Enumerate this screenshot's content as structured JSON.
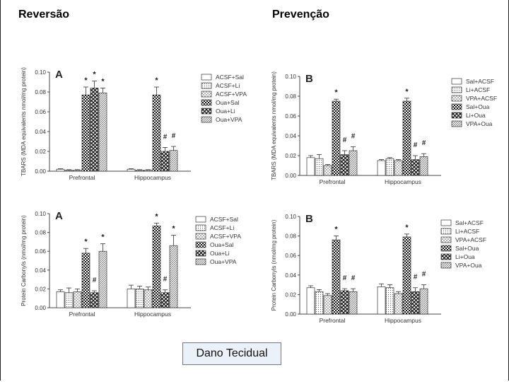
{
  "headings": {
    "left": "Reversão",
    "right": "Prevenção"
  },
  "caption": "Dano Tecidual",
  "colors": {
    "axis": "#444444",
    "bar_fill": "#ffffff",
    "bar_stroke": "#333333",
    "text": "#333333"
  },
  "chart_data": [
    {
      "type": "bar",
      "panel_letter": "A",
      "ylabel": "TBARS (MDA equivalents nmol/mg protein)",
      "ylim": [
        0,
        0.1
      ],
      "yticks": [
        "0.00",
        "0.02",
        "0.04",
        "0.06",
        "0.08",
        "0.10"
      ],
      "categories": [
        "Prefrontal",
        "Hippocampus"
      ],
      "series": [
        {
          "name": "ACSF+Sal",
          "pattern": "empty",
          "values": [
            0.002,
            0.002
          ],
          "errors": [
            0.0005,
            0.0005
          ],
          "marks": [
            "",
            ""
          ]
        },
        {
          "name": "ACSF+Li",
          "pattern": "dots",
          "values": [
            0.001,
            0.001
          ],
          "errors": [
            0.0005,
            0.0005
          ],
          "marks": [
            "",
            ""
          ]
        },
        {
          "name": "ACSF+VPA",
          "pattern": "cross",
          "values": [
            0.001,
            0.001
          ],
          "errors": [
            0.0005,
            0.0005
          ],
          "marks": [
            "",
            ""
          ]
        },
        {
          "name": "Oua+Sal",
          "pattern": "check",
          "values": [
            0.077,
            0.077
          ],
          "errors": [
            0.008,
            0.008
          ],
          "marks": [
            "*",
            "*"
          ]
        },
        {
          "name": "Oua+Li",
          "pattern": "xhatch",
          "values": [
            0.084,
            0.02
          ],
          "errors": [
            0.007,
            0.004
          ],
          "marks": [
            "*",
            "#"
          ]
        },
        {
          "name": "Oua+VPA",
          "pattern": "diag",
          "values": [
            0.079,
            0.021
          ],
          "errors": [
            0.005,
            0.004
          ],
          "marks": [
            "*",
            "#"
          ]
        }
      ]
    },
    {
      "type": "bar",
      "panel_letter": "B",
      "ylabel": "TBARS (MDA equivalents nmol/mg protein)",
      "ylim": [
        0,
        0.1
      ],
      "yticks": [
        "0.00",
        "0.02",
        "0.04",
        "0.06",
        "0.08",
        "0.10"
      ],
      "categories": [
        "Prefrontal",
        "Hippocampus"
      ],
      "series": [
        {
          "name": "Sal+ACSF",
          "pattern": "empty",
          "values": [
            0.018,
            0.015
          ],
          "errors": [
            0.002,
            0.001
          ],
          "marks": [
            "",
            ""
          ]
        },
        {
          "name": "Li+ACSF",
          "pattern": "dots",
          "values": [
            0.017,
            0.017
          ],
          "errors": [
            0.004,
            0.001
          ],
          "marks": [
            "",
            ""
          ]
        },
        {
          "name": "VPA+ACSF",
          "pattern": "cross",
          "values": [
            0.01,
            0.015
          ],
          "errors": [
            0.001,
            0.001
          ],
          "marks": [
            "",
            ""
          ]
        },
        {
          "name": "Sal+Oua",
          "pattern": "check",
          "values": [
            0.075,
            0.075
          ],
          "errors": [
            0.002,
            0.003
          ],
          "marks": [
            "*",
            "*"
          ]
        },
        {
          "name": "Li+Oua",
          "pattern": "xhatch",
          "values": [
            0.021,
            0.016
          ],
          "errors": [
            0.004,
            0.004
          ],
          "marks": [
            "#",
            "#"
          ]
        },
        {
          "name": "VPA+Oua",
          "pattern": "diag",
          "values": [
            0.025,
            0.019
          ],
          "errors": [
            0.004,
            0.003
          ],
          "marks": [
            "#",
            "#"
          ]
        }
      ]
    },
    {
      "type": "bar",
      "panel_letter": "A",
      "ylabel": "Protein Carbonyls (nmol/mg protein)",
      "ylim": [
        0,
        0.1
      ],
      "yticks": [
        "0.00",
        "0.02",
        "0.04",
        "0.06",
        "0.08",
        "0.10"
      ],
      "categories": [
        "Prefrontal",
        "Hippocampus"
      ],
      "series": [
        {
          "name": "ACSF+Sal",
          "pattern": "empty",
          "values": [
            0.017,
            0.02
          ],
          "errors": [
            0.002,
            0.004
          ],
          "marks": [
            "",
            ""
          ]
        },
        {
          "name": "ACSF+Li",
          "pattern": "dots",
          "values": [
            0.016,
            0.02
          ],
          "errors": [
            0.005,
            0.003
          ],
          "marks": [
            "",
            ""
          ]
        },
        {
          "name": "ACSF+VPA",
          "pattern": "cross",
          "values": [
            0.017,
            0.019
          ],
          "errors": [
            0.003,
            0.003
          ],
          "marks": [
            "",
            ""
          ]
        },
        {
          "name": "Oua+Sal",
          "pattern": "check",
          "values": [
            0.058,
            0.087
          ],
          "errors": [
            0.005,
            0.003
          ],
          "marks": [
            "*",
            "*"
          ]
        },
        {
          "name": "Oua+Li",
          "pattern": "xhatch",
          "values": [
            0.016,
            0.016
          ],
          "errors": [
            0.002,
            0.003
          ],
          "marks": [
            "#",
            "#"
          ]
        },
        {
          "name": "Oua+VPA",
          "pattern": "diag",
          "values": [
            0.06,
            0.066
          ],
          "errors": [
            0.008,
            0.011
          ],
          "marks": [
            "*",
            "*"
          ]
        }
      ]
    },
    {
      "type": "bar",
      "panel_letter": "B",
      "ylabel": "Protein Carbonyls (nmol/mg protein)",
      "ylim": [
        0,
        0.1
      ],
      "yticks": [
        "0.00",
        "0.02",
        "0.04",
        "0.06",
        "0.08",
        "0.10"
      ],
      "categories": [
        "Prefrontal",
        "Hippocampus"
      ],
      "series": [
        {
          "name": "Sal+ACSF",
          "pattern": "empty",
          "values": [
            0.027,
            0.028
          ],
          "errors": [
            0.002,
            0.003
          ],
          "marks": [
            "",
            ""
          ]
        },
        {
          "name": "Li+ACSF",
          "pattern": "dots",
          "values": [
            0.023,
            0.027
          ],
          "errors": [
            0.002,
            0.003
          ],
          "marks": [
            "",
            ""
          ]
        },
        {
          "name": "VPA+ACSF",
          "pattern": "cross",
          "values": [
            0.019,
            0.021
          ],
          "errors": [
            0.002,
            0.002
          ],
          "marks": [
            "",
            ""
          ]
        },
        {
          "name": "Sal+Oua",
          "pattern": "check",
          "values": [
            0.076,
            0.079
          ],
          "errors": [
            0.004,
            0.003
          ],
          "marks": [
            "*",
            "*"
          ]
        },
        {
          "name": "Li+Oua",
          "pattern": "xhatch",
          "values": [
            0.024,
            0.023
          ],
          "errors": [
            0.002,
            0.004
          ],
          "marks": [
            "#",
            "#"
          ]
        },
        {
          "name": "VPA+Oua",
          "pattern": "diag",
          "values": [
            0.023,
            0.026
          ],
          "errors": [
            0.003,
            0.004
          ],
          "marks": [
            "#",
            "#"
          ]
        }
      ]
    }
  ]
}
